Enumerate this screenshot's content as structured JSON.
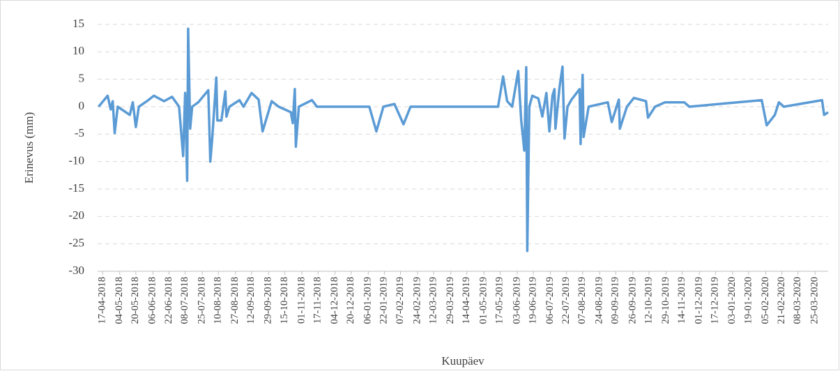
{
  "chart_data": {
    "type": "line",
    "x_title": "Kuupäev",
    "y_title": "Erinevus (mm)",
    "x": [
      "13-04-2018",
      "22-04-2018",
      "25-04-2018",
      "27-04-2018",
      "29-04-2018",
      "02-05-2018",
      "14-05-2018",
      "17-05-2018",
      "20-05-2018",
      "23-05-2018",
      "31-05-2018",
      "07-06-2018",
      "17-06-2018",
      "25-06-2018",
      "02-07-2018",
      "06-07-2018",
      "08-07-2018",
      "10-07-2018",
      "11-07-2018",
      "13-07-2018",
      "15-07-2018",
      "21-07-2018",
      "31-07-2018",
      "02-08-2018",
      "04-08-2018",
      "08-08-2018",
      "09-08-2018",
      "13-08-2018",
      "17-08-2018",
      "18-08-2018",
      "21-08-2018",
      "31-08-2018",
      "04-09-2018",
      "12-09-2018",
      "19-09-2018",
      "23-09-2018",
      "02-10-2018",
      "09-10-2018",
      "21-10-2018",
      "23-10-2018",
      "25-10-2018",
      "26-10-2018",
      "29-10-2018",
      "11-11-2018",
      "16-11-2018",
      "07-01-2019",
      "14-01-2019",
      "21-01-2019",
      "01-02-2019",
      "10-02-2019",
      "17-02-2019",
      "15-05-2019",
      "20-05-2019",
      "24-05-2019",
      "29-05-2019",
      "04-06-2019",
      "07-06-2019",
      "10-06-2019",
      "12-06-2019",
      "13-06-2019",
      "15-06-2019",
      "18-06-2019",
      "24-06-2019",
      "28-06-2019",
      "02-07-2019",
      "05-07-2019",
      "08-07-2019",
      "10-07-2019",
      "11-07-2019",
      "15-07-2019",
      "18-07-2019",
      "20-07-2019",
      "23-07-2019",
      "27-07-2019",
      "04-08-2019",
      "05-08-2019",
      "07-08-2019",
      "08-08-2019",
      "13-08-2019",
      "01-09-2019",
      "05-09-2019",
      "12-09-2019",
      "13-09-2019",
      "20-09-2019",
      "27-09-2019",
      "09-10-2019",
      "11-10-2019",
      "18-10-2019",
      "28-10-2019",
      "16-11-2019",
      "21-11-2019",
      "01-02-2020",
      "06-02-2020",
      "14-02-2020",
      "18-02-2020",
      "23-02-2020",
      "01-04-2020",
      "03-04-2020",
      "07-04-2020"
    ],
    "series": [
      {
        "color": "#5b9bd5",
        "values": [
          0,
          2,
          -0.5,
          1,
          -4.8,
          0,
          -1.5,
          0.8,
          -3.7,
          0,
          1,
          2,
          1,
          1.8,
          0,
          -9,
          2.5,
          -13.5,
          14.2,
          -4,
          0,
          0.8,
          3,
          -10,
          -5.5,
          5.3,
          -2.5,
          -2.5,
          2.8,
          -1.8,
          0,
          1.2,
          0,
          2.5,
          1.3,
          -4.5,
          1,
          0,
          -1,
          -3,
          3.2,
          -7.3,
          0,
          1.2,
          0,
          0,
          -4.5,
          0,
          0.5,
          -3.2,
          0,
          0,
          5.5,
          1,
          0,
          6.5,
          -2.5,
          -8,
          7.2,
          -26.3,
          0,
          2,
          1.5,
          -1.8,
          2.5,
          -4.5,
          2,
          3.2,
          -4,
          3.5,
          7.3,
          -5.8,
          0,
          1.3,
          3.2,
          -6.8,
          5.8,
          -5.5,
          0,
          0.8,
          -2.8,
          1.3,
          -4,
          0,
          1.6,
          1,
          -2,
          0,
          0.8,
          0.8,
          0,
          1.2,
          -3.4,
          -1.5,
          0.8,
          0,
          1.2,
          -1.5,
          -1
        ]
      }
    ],
    "xlim": [
      "12-04-2018",
      "07-04-2020"
    ],
    "xticks": [
      "17-04-2018",
      "04-05-2018",
      "20-05-2018",
      "06-06-2018",
      "22-06-2018",
      "08-07-2018",
      "25-07-2018",
      "10-08-2018",
      "27-08-2018",
      "12-09-2018",
      "29-09-2018",
      "15-10-2018",
      "01-11-2018",
      "17-11-2018",
      "04-12-2018",
      "20-12-2018",
      "06-01-2019",
      "22-01-2019",
      "07-02-2019",
      "24-02-2019",
      "12-03-2019",
      "29-03-2019",
      "14-04-2019",
      "01-05-2019",
      "17-05-2019",
      "03-06-2019",
      "19-06-2019",
      "06-07-2019",
      "22-07-2019",
      "07-08-2019",
      "24-08-2019",
      "09-09-2019",
      "26-09-2019",
      "12-10-2019",
      "29-10-2019",
      "14-11-2019",
      "01-12-2019",
      "17-12-2019",
      "03-01-2020",
      "19-01-2020",
      "05-02-2020",
      "21-02-2020",
      "08-03-2020",
      "25-03-2020"
    ],
    "ylim": [
      -30,
      15
    ],
    "yticks": [
      -30,
      -25,
      -20,
      -15,
      -10,
      -5,
      0,
      5,
      10,
      15
    ],
    "grid": true
  }
}
